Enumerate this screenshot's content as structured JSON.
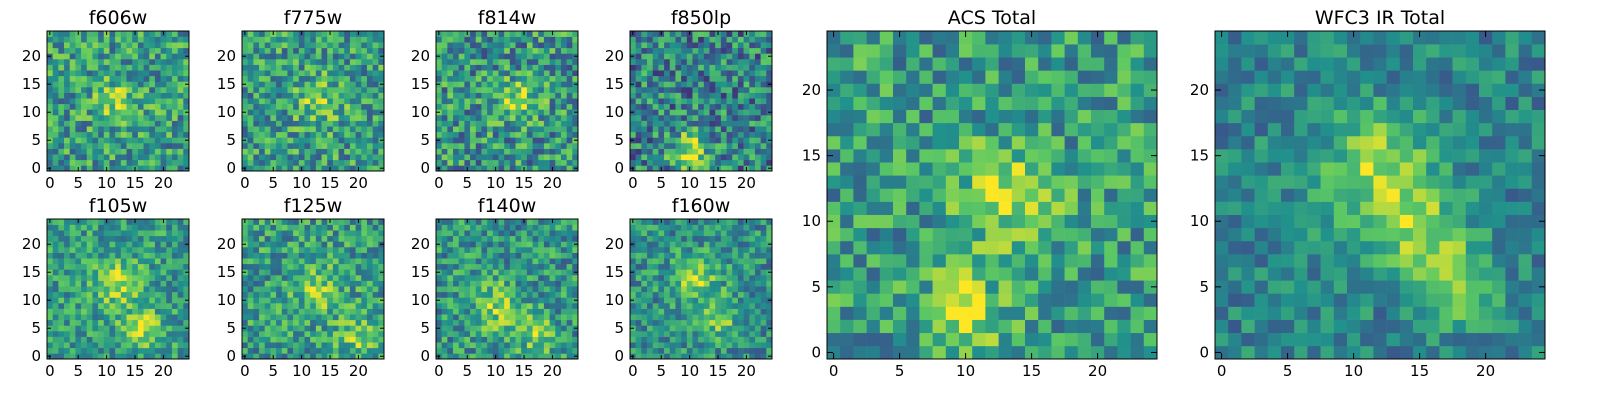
{
  "chart_data": [
    {
      "type": "heatmap",
      "title": "f606w",
      "seed": 11,
      "blob": [
        [
          12,
          12,
          2.8,
          0.25
        ]
      ],
      "noise": 0.55,
      "base": 0.55,
      "xticks": [
        "0",
        "5",
        "10",
        "15",
        "20"
      ],
      "yticks": [
        "0",
        "5",
        "10",
        "15",
        "20"
      ],
      "xlim": [
        -0.5,
        24.5
      ],
      "ylim": [
        -0.5,
        24.5
      ]
    },
    {
      "type": "heatmap",
      "title": "f775w",
      "seed": 23,
      "blob": [
        [
          13,
          12,
          2.8,
          0.25
        ]
      ],
      "noise": 0.55,
      "base": 0.55,
      "xticks": [
        "0",
        "5",
        "10",
        "15",
        "20"
      ],
      "yticks": [
        "0",
        "5",
        "10",
        "15",
        "20"
      ],
      "xlim": [
        -0.5,
        24.5
      ],
      "ylim": [
        -0.5,
        24.5
      ]
    },
    {
      "type": "heatmap",
      "title": "f814w",
      "seed": 37,
      "blob": [
        [
          14,
          12,
          2.5,
          0.35
        ]
      ],
      "noise": 0.6,
      "base": 0.52,
      "xticks": [
        "0",
        "5",
        "10",
        "15",
        "20"
      ],
      "yticks": [
        "0",
        "5",
        "10",
        "15",
        "20"
      ],
      "xlim": [
        -0.5,
        24.5
      ],
      "ylim": [
        -0.5,
        24.5
      ]
    },
    {
      "type": "heatmap",
      "title": "f850lp",
      "seed": 41,
      "blob": [
        [
          10,
          3,
          2.2,
          0.5
        ]
      ],
      "noise": 0.6,
      "base": 0.45,
      "xticks": [
        "0",
        "5",
        "10",
        "15",
        "20"
      ],
      "yticks": [
        "0",
        "5",
        "10",
        "15",
        "20"
      ],
      "xlim": [
        -0.5,
        24.5
      ],
      "ylim": [
        -0.5,
        24.5
      ]
    },
    {
      "type": "heatmap",
      "title": "f105w",
      "seed": 53,
      "blob": [
        [
          12,
          13,
          3,
          0.3
        ],
        [
          16,
          5,
          2.5,
          0.3
        ]
      ],
      "noise": 0.45,
      "base": 0.55,
      "xticks": [
        "0",
        "5",
        "10",
        "15",
        "20"
      ],
      "yticks": [
        "0",
        "5",
        "10",
        "15",
        "20"
      ],
      "xlim": [
        -0.5,
        24.5
      ],
      "ylim": [
        -0.5,
        24.5
      ]
    },
    {
      "type": "heatmap",
      "title": "f125w",
      "seed": 67,
      "blob": [
        [
          13,
          12,
          3,
          0.25
        ],
        [
          20,
          4,
          2.5,
          0.25
        ]
      ],
      "noise": 0.5,
      "base": 0.55,
      "xticks": [
        "0",
        "5",
        "10",
        "15",
        "20"
      ],
      "yticks": [
        "0",
        "5",
        "10",
        "15",
        "20"
      ],
      "xlim": [
        -0.5,
        24.5
      ],
      "ylim": [
        -0.5,
        24.5
      ]
    },
    {
      "type": "heatmap",
      "title": "f140w",
      "seed": 71,
      "blob": [
        [
          10,
          9,
          3,
          0.3
        ],
        [
          17,
          4,
          2.5,
          0.3
        ]
      ],
      "noise": 0.5,
      "base": 0.52,
      "xticks": [
        "0",
        "5",
        "10",
        "15",
        "20"
      ],
      "yticks": [
        "0",
        "5",
        "10",
        "15",
        "20"
      ],
      "xlim": [
        -0.5,
        24.5
      ],
      "ylim": [
        -0.5,
        24.5
      ]
    },
    {
      "type": "heatmap",
      "title": "f160w",
      "seed": 83,
      "blob": [
        [
          11,
          14,
          2.8,
          0.35
        ],
        [
          15,
          7,
          2.5,
          0.3
        ]
      ],
      "noise": 0.45,
      "base": 0.5,
      "xticks": [
        "0",
        "5",
        "10",
        "15",
        "20"
      ],
      "yticks": [
        "0",
        "5",
        "10",
        "15",
        "20"
      ],
      "xlim": [
        -0.5,
        24.5
      ],
      "ylim": [
        -0.5,
        24.5
      ]
    },
    {
      "type": "heatmap",
      "title": "ACS Total",
      "seed": 97,
      "blob": [
        [
          13,
          12,
          2.5,
          0.35
        ],
        [
          10,
          3,
          2,
          0.4
        ]
      ],
      "noise": 0.5,
      "base": 0.55,
      "xticks": [
        "0",
        "5",
        "10",
        "15",
        "20"
      ],
      "yticks": [
        "0",
        "5",
        "10",
        "15",
        "20"
      ],
      "xlim": [
        -0.5,
        24.5
      ],
      "ylim": [
        -0.5,
        24.5
      ]
    },
    {
      "type": "heatmap",
      "title": "WFC3 IR Total",
      "seed": 101,
      "blob": [
        [
          12,
          14,
          3,
          0.4
        ],
        [
          15,
          9,
          2.5,
          0.35
        ],
        [
          18,
          5,
          2,
          0.3
        ]
      ],
      "noise": 0.35,
      "base": 0.45,
      "xticks": [
        "0",
        "5",
        "10",
        "15",
        "20"
      ],
      "yticks": [
        "0",
        "5",
        "10",
        "15",
        "20"
      ],
      "xlim": [
        -0.5,
        24.5
      ],
      "ylim": [
        -0.5,
        24.5
      ]
    }
  ],
  "colormap": [
    "#440154",
    "#3b528b",
    "#21918c",
    "#5ec962",
    "#fde725"
  ]
}
